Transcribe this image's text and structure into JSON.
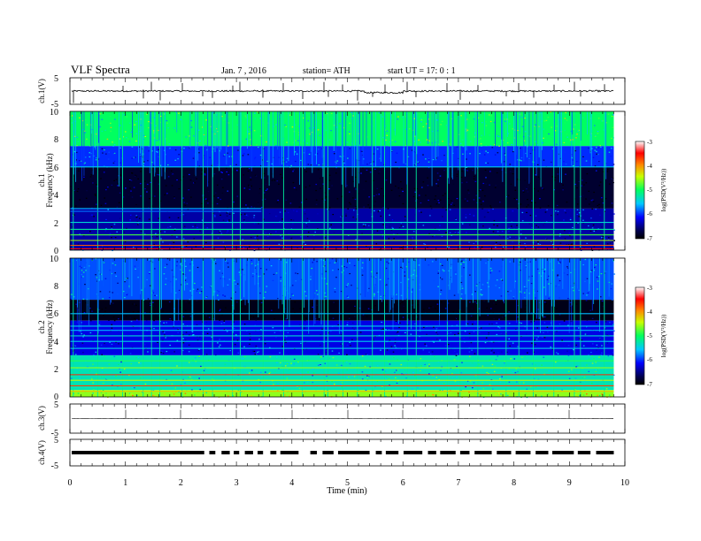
{
  "header": {
    "title": "VLF  Spectra",
    "date": "Jan.  7  , 2016",
    "station": "station= ATH",
    "start": "start  UT  =    17: 0   : 1"
  },
  "colors": {
    "axis": "#000000",
    "spectrogram_background": "#00004d",
    "signal_trace": "#000000"
  },
  "chart_data": [
    {
      "type": "line",
      "panel": "ch1-waveform",
      "ylabel": "ch.1(V)",
      "ylim": [
        -5,
        5
      ],
      "y_ticks": [
        "5",
        "-5"
      ],
      "xlim": [
        0,
        10
      ],
      "x_end_min": 9.8,
      "baseline_v": 0.0,
      "noise_amplitude_v": 0.3,
      "spikes": [
        {
          "t": 0.06,
          "v": -4.5
        },
        {
          "t": 0.95,
          "v": 2.0
        },
        {
          "t": 1.32,
          "v": -2.8
        },
        {
          "t": 1.47,
          "v": 3.5
        },
        {
          "t": 1.62,
          "v": -3.5
        },
        {
          "t": 2.02,
          "v": 3.0
        },
        {
          "t": 2.4,
          "v": -2.0
        },
        {
          "t": 2.57,
          "v": -2.6
        },
        {
          "t": 2.93,
          "v": 2.1
        },
        {
          "t": 3.07,
          "v": 3.5
        },
        {
          "t": 3.48,
          "v": -2.5
        },
        {
          "t": 3.85,
          "v": 3.0
        },
        {
          "t": 4.19,
          "v": -3.0
        },
        {
          "t": 4.58,
          "v": 3.4
        },
        {
          "t": 4.65,
          "v": -2.2
        },
        {
          "t": 4.92,
          "v": 2.5
        },
        {
          "t": 5.18,
          "v": -3.6
        },
        {
          "t": 5.45,
          "v": -2.2
        },
        {
          "t": 5.67,
          "v": 2.5
        },
        {
          "t": 6.08,
          "v": 3.5
        },
        {
          "t": 6.24,
          "v": -2.3
        },
        {
          "t": 6.8,
          "v": 3.0
        },
        {
          "t": 7.03,
          "v": -3.3
        },
        {
          "t": 7.35,
          "v": 2.3
        },
        {
          "t": 7.86,
          "v": -2.0
        },
        {
          "t": 8.09,
          "v": 3.0
        },
        {
          "t": 8.35,
          "v": -2.5
        },
        {
          "t": 8.72,
          "v": 2.4
        },
        {
          "t": 9.09,
          "v": 3.5
        },
        {
          "t": 9.2,
          "v": -2.1
        },
        {
          "t": 9.63,
          "v": 2.6
        }
      ],
      "dip_segment": {
        "from": 5.3,
        "to": 6.0,
        "v": -0.6
      }
    },
    {
      "type": "heatmap",
      "panel": "ch1-spectrogram",
      "ylabel": "ch.1\nFrequency  (kHz)",
      "ylim": [
        0,
        10
      ],
      "y_ticks": [
        "0",
        "2",
        "4",
        "6",
        "8",
        "10"
      ],
      "xlim": [
        0,
        10
      ],
      "x_end_min": 9.8,
      "colorbar": {
        "label": "log(PSD(V²/Hz))",
        "range": [
          -7,
          -3
        ],
        "ticks": [
          "-3",
          "-4",
          "-5",
          "-6",
          "-7"
        ]
      },
      "bands_khz": [
        {
          "f_min": 7.5,
          "f_max": 10.0,
          "log_psd": -5.0
        },
        {
          "f_min": 6.0,
          "f_max": 7.5,
          "log_psd": -6.0
        },
        {
          "f_min": 3.0,
          "f_max": 6.0,
          "log_psd": -6.8
        },
        {
          "f_min": 0.0,
          "f_max": 3.0,
          "log_psd": -6.4
        }
      ],
      "tone_lines": [
        {
          "f_khz": 6.0,
          "log_psd": -5.5
        },
        {
          "f_khz": 3.0,
          "log_psd": -5.6,
          "until_min": 3.45
        },
        {
          "f_khz": 2.8,
          "log_psd": -5.8,
          "until_min": 3.45
        },
        {
          "f_khz": 2.0,
          "log_psd": -5.4
        },
        {
          "f_khz": 1.5,
          "log_psd": -5.2
        },
        {
          "f_khz": 1.1,
          "log_psd": -4.8
        },
        {
          "f_khz": 0.7,
          "log_psd": -4.5
        },
        {
          "f_khz": 0.35,
          "log_psd": -3.8
        },
        {
          "f_khz": 0.1,
          "log_psd": -3.5
        }
      ],
      "sferic_times_min": [
        0.06,
        0.5,
        0.95,
        1.32,
        1.47,
        1.62,
        2.02,
        2.4,
        2.57,
        2.93,
        3.07,
        3.48,
        3.85,
        4.19,
        4.58,
        4.65,
        4.92,
        5.18,
        5.45,
        5.67,
        6.08,
        6.24,
        6.8,
        7.03,
        7.35,
        7.86,
        8.09,
        8.35,
        8.72,
        9.09,
        9.2,
        9.63
      ]
    },
    {
      "type": "heatmap",
      "panel": "ch2-spectrogram",
      "ylabel": "ch.2\nFrequency  (kHz)",
      "ylim": [
        0,
        10
      ],
      "y_ticks": [
        "0",
        "2",
        "4",
        "6",
        "8",
        "10"
      ],
      "xlim": [
        0,
        10
      ],
      "x_end_min": 9.8,
      "colorbar": {
        "label": "log(PSD(V²/Hz))",
        "range": [
          -7,
          -3
        ],
        "ticks": [
          "-3",
          "-4",
          "-5",
          "-6",
          "-7"
        ]
      },
      "bands_khz": [
        {
          "f_min": 7.0,
          "f_max": 10.0,
          "log_psd": -5.9
        },
        {
          "f_min": 5.5,
          "f_max": 7.0,
          "log_psd": -6.9
        },
        {
          "f_min": 3.0,
          "f_max": 5.5,
          "log_psd": -6.2
        },
        {
          "f_min": 0.5,
          "f_max": 3.0,
          "log_psd": -5.3
        },
        {
          "f_min": 0.0,
          "f_max": 0.5,
          "log_psd": -4.6
        }
      ],
      "tone_lines": [
        {
          "f_khz": 6.0,
          "log_psd": -5.6
        },
        {
          "f_khz": 5.1,
          "log_psd": -5.5
        },
        {
          "f_khz": 4.8,
          "log_psd": -5.6
        },
        {
          "f_khz": 4.4,
          "log_psd": -5.4
        },
        {
          "f_khz": 4.0,
          "log_psd": -5.5
        },
        {
          "f_khz": 3.5,
          "log_psd": -5.5
        },
        {
          "f_khz": 2.6,
          "log_psd": -4.9
        },
        {
          "f_khz": 2.1,
          "log_psd": -4.6
        },
        {
          "f_khz": 1.6,
          "log_psd": -3.6
        },
        {
          "f_khz": 1.2,
          "log_psd": -4.4
        },
        {
          "f_khz": 0.8,
          "log_psd": -3.7
        },
        {
          "f_khz": 0.4,
          "log_psd": -4.2
        }
      ],
      "sferic_times_min": [
        0.06,
        0.5,
        0.95,
        1.32,
        1.47,
        1.62,
        2.02,
        2.4,
        2.57,
        2.93,
        3.07,
        3.48,
        3.85,
        4.19,
        4.58,
        4.65,
        4.92,
        5.18,
        5.45,
        5.67,
        6.08,
        6.24,
        6.8,
        7.03,
        7.35,
        7.86,
        8.09,
        8.35,
        8.72,
        9.09,
        9.2,
        9.63
      ]
    },
    {
      "type": "line",
      "panel": "ch3-waveform",
      "ylabel": "ch.3(V)",
      "ylim": [
        -5,
        5
      ],
      "y_ticks": [
        "5",
        "-5"
      ],
      "xlim": [
        0,
        10
      ],
      "x_end_min": 9.8,
      "baseline_v": 0.0,
      "noise_amplitude_v": 0.05,
      "spikes": [
        {
          "t": 1.0,
          "v": 3.0
        },
        {
          "t": 2.0,
          "v": 3.0
        },
        {
          "t": 3.0,
          "v": 3.0
        },
        {
          "t": 4.0,
          "v": 3.0
        },
        {
          "t": 5.0,
          "v": 3.0
        },
        {
          "t": 6.0,
          "v": 3.0
        },
        {
          "t": 7.0,
          "v": 3.0
        },
        {
          "t": 8.0,
          "v": 3.0
        },
        {
          "t": 9.0,
          "v": 3.0
        }
      ]
    },
    {
      "type": "line",
      "panel": "ch4-waveform",
      "ylabel": "ch.4(V)",
      "ylim": [
        -5,
        5
      ],
      "y_ticks": [
        "5",
        "-5"
      ],
      "xlim": [
        0,
        10
      ],
      "x_end_min": 9.8,
      "baseline_v": 0.0,
      "thick_trace_v": 0.3,
      "gaps_min": [
        [
          2.42,
          2.48
        ],
        [
          2.62,
          2.7
        ],
        [
          2.88,
          2.92
        ],
        [
          3.05,
          3.12
        ],
        [
          3.3,
          3.35
        ],
        [
          3.48,
          3.58
        ],
        [
          3.72,
          3.76
        ],
        [
          4.12,
          4.3
        ],
        [
          4.45,
          4.52
        ],
        [
          4.75,
          4.8
        ],
        [
          5.4,
          5.48
        ],
        [
          5.62,
          5.66
        ],
        [
          5.92,
          5.98
        ],
        [
          6.35,
          6.42
        ],
        [
          6.6,
          6.64
        ],
        [
          6.95,
          7.0
        ],
        [
          7.2,
          7.26
        ],
        [
          7.6,
          7.66
        ],
        [
          7.95,
          8.0
        ],
        [
          8.3,
          8.36
        ],
        [
          8.62,
          8.66
        ],
        [
          9.08,
          9.12
        ],
        [
          9.38,
          9.45
        ]
      ]
    }
  ],
  "x_axis": {
    "label": "Time  (min)",
    "range": [
      0,
      10
    ],
    "ticks": [
      "0",
      "1",
      "2",
      "3",
      "4",
      "5",
      "6",
      "7",
      "8",
      "9",
      "10"
    ]
  }
}
